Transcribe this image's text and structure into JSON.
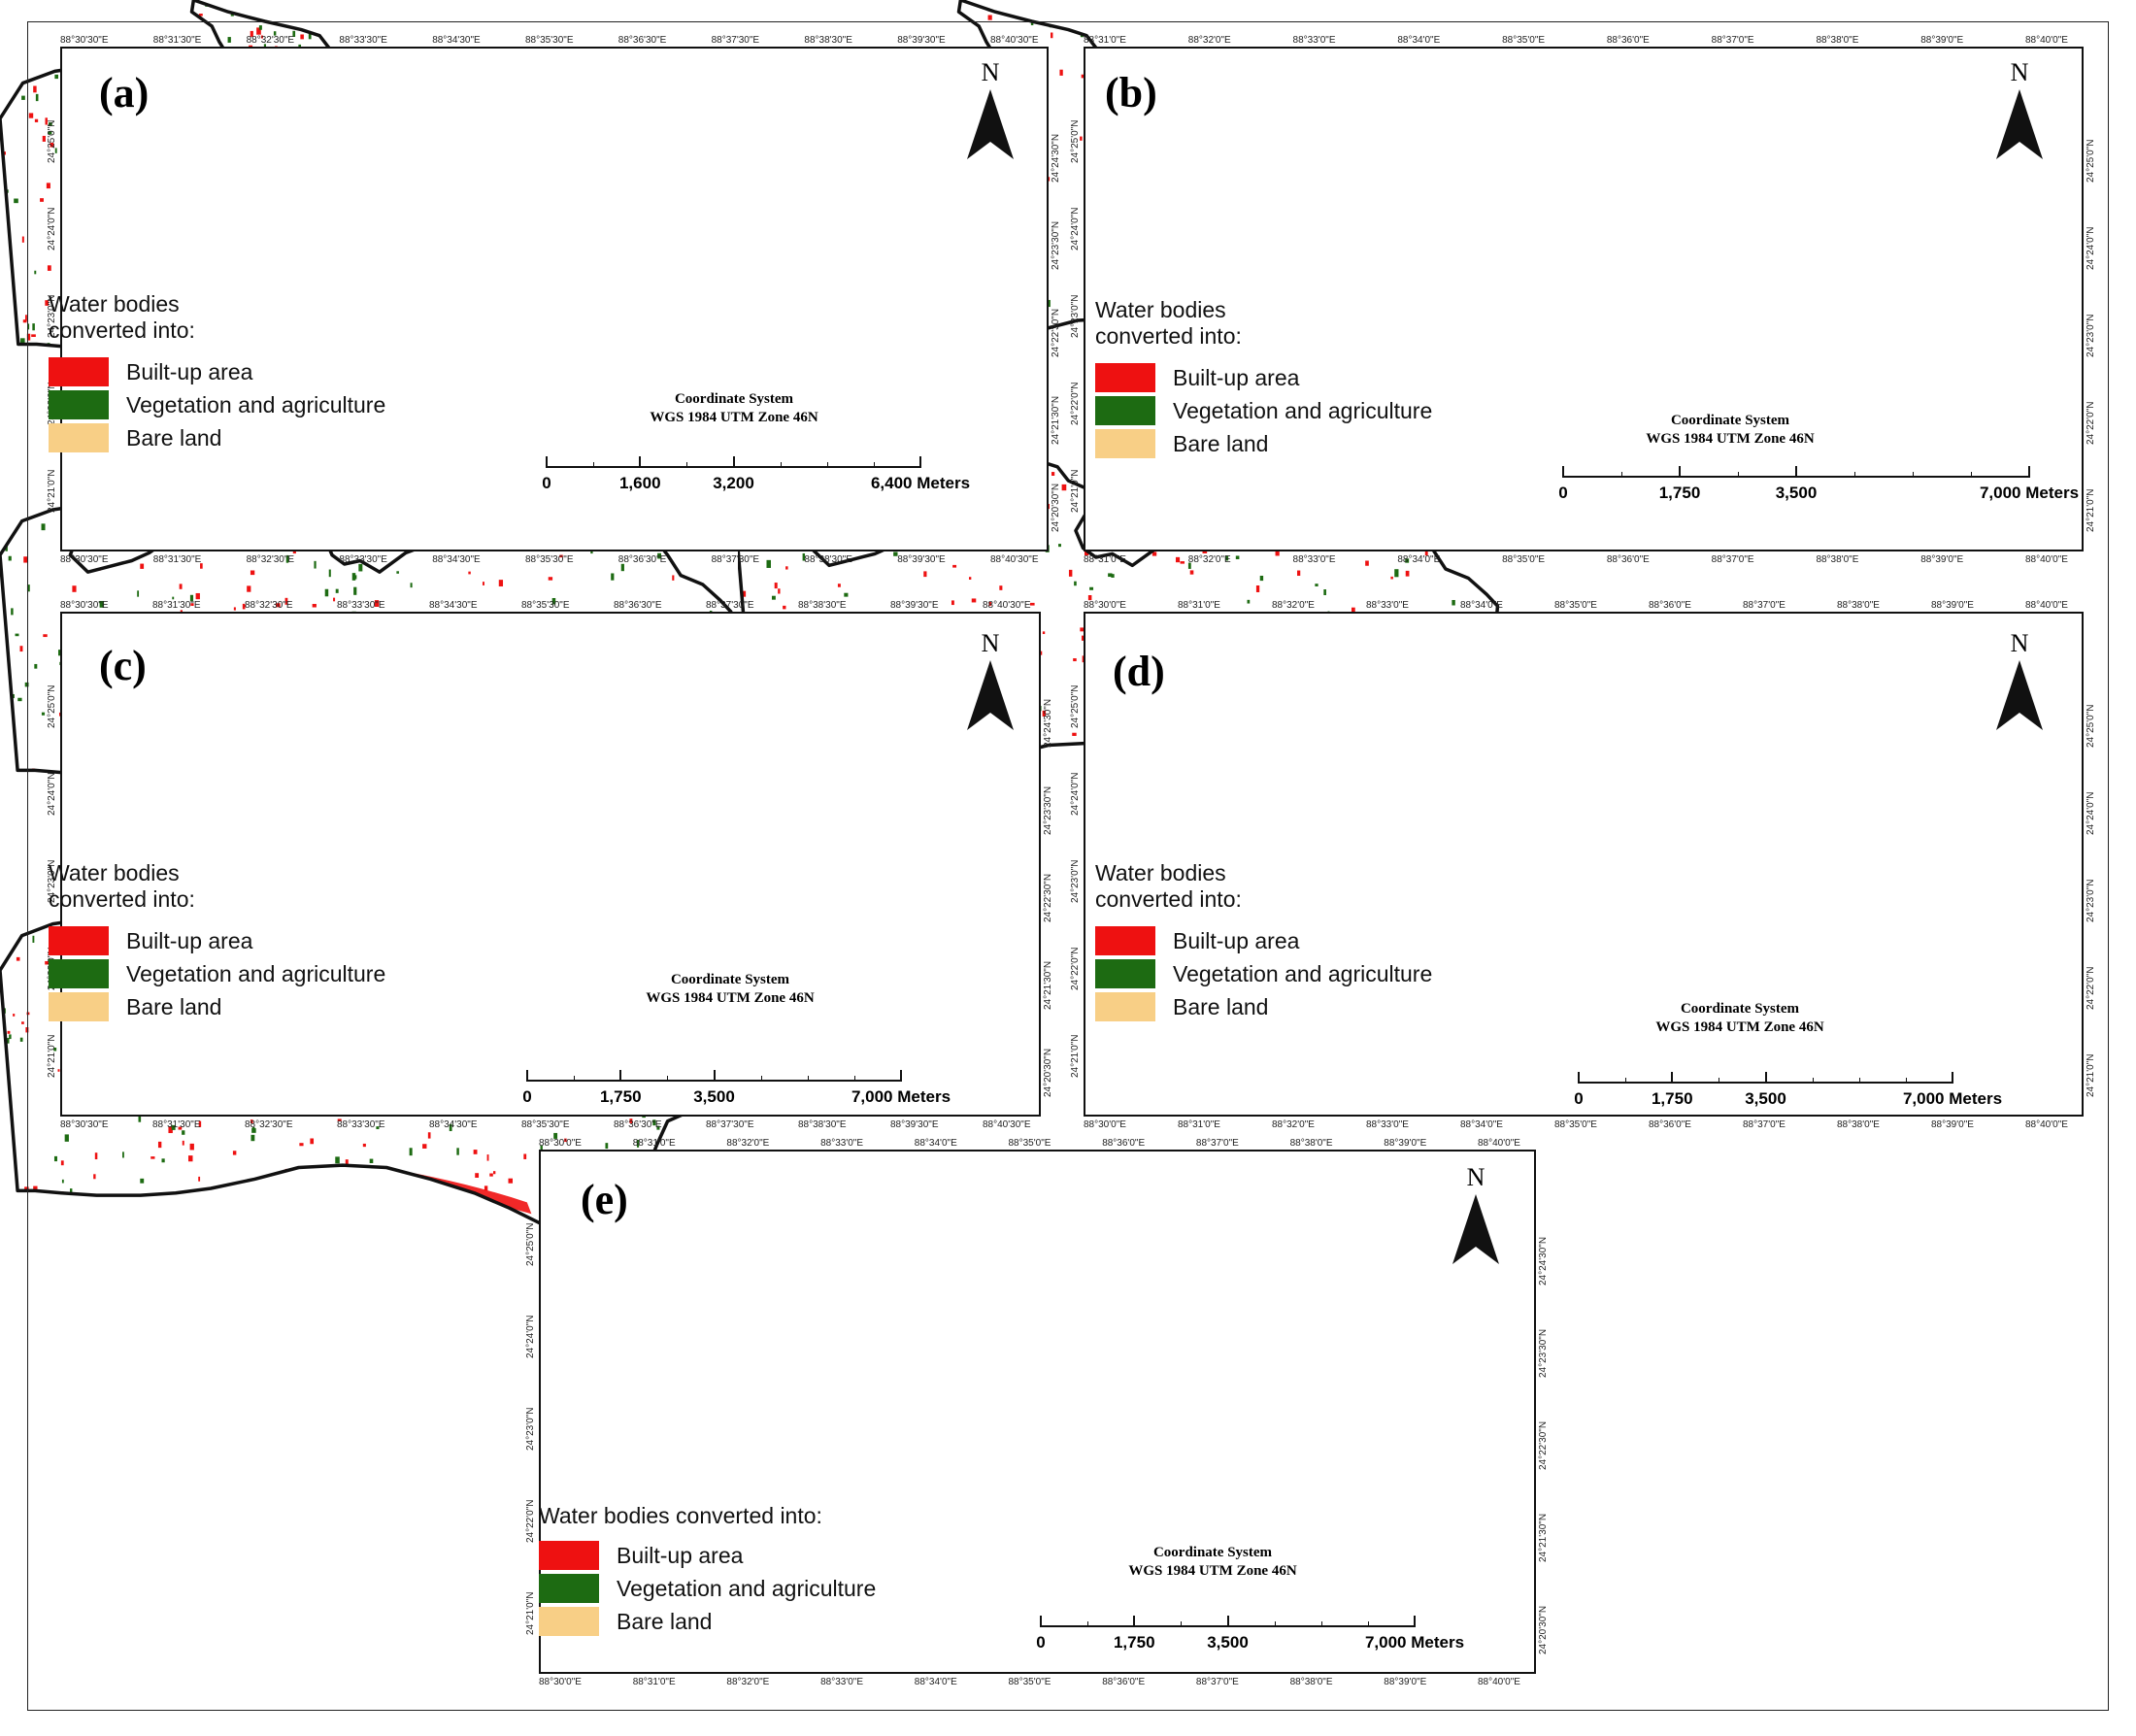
{
  "colors": {
    "builtup": "#ee1111",
    "vegetation": "#1d6b12",
    "bareland": "#f8cf86",
    "boundary": "#111111"
  },
  "north_symbol": "N",
  "legend_items": [
    "Built-up area",
    "Vegetation and agriculture",
    "Bare land"
  ],
  "coord_system": [
    "Coordinate System",
    "WGS 1984 UTM Zone 46N"
  ],
  "grid_labels": {
    "lon_a": [
      "88°30'30\"E",
      "88°31'30\"E",
      "88°32'30\"E",
      "88°33'30\"E",
      "88°34'30\"E",
      "88°35'30\"E",
      "88°36'30\"E",
      "88°37'30\"E",
      "88°38'30\"E",
      "88°39'30\"E",
      "88°40'30\"E"
    ],
    "lon_b": [
      "88°31'0\"E",
      "88°32'0\"E",
      "88°33'0\"E",
      "88°34'0\"E",
      "88°35'0\"E",
      "88°36'0\"E",
      "88°37'0\"E",
      "88°38'0\"E",
      "88°39'0\"E",
      "88°40'0\"E"
    ],
    "lon_d": [
      "88°30'0\"E",
      "88°31'0\"E",
      "88°32'0\"E",
      "88°33'0\"E",
      "88°34'0\"E",
      "88°35'0\"E",
      "88°36'0\"E",
      "88°37'0\"E",
      "88°38'0\"E",
      "88°39'0\"E",
      "88°40'0\"E"
    ],
    "lat_a_left": [
      "24°25'0\"N",
      "24°24'0\"N",
      "24°23'0\"N",
      "24°22'0\"N",
      "24°21'0\"N"
    ],
    "lat_a_right": [
      "24°24'30\"N",
      "24°23'30\"N",
      "24°22'30\"N",
      "24°21'30\"N",
      "24°20'30\"N"
    ],
    "lat_b": [
      "24°25'0\"N",
      "24°24'0\"N",
      "24°23'0\"N",
      "24°22'0\"N",
      "24°21'0\"N"
    ]
  },
  "panels": [
    {
      "id": "a",
      "label": "(a)",
      "legend_title": "Water bodies converted into:",
      "scale_labels": [
        "0",
        "1,600",
        "3,200",
        "6,400 Meters"
      ]
    },
    {
      "id": "b",
      "label": "(b)",
      "legend_title": "Water bodies converted into:",
      "scale_labels": [
        "0",
        "1,750",
        "3,500",
        "7,000 Meters"
      ]
    },
    {
      "id": "c",
      "label": "(c)",
      "legend_title": "Water bodies converted into:",
      "scale_labels": [
        "0",
        "1,750",
        "3,500",
        "7,000 Meters"
      ]
    },
    {
      "id": "d",
      "label": "(d)",
      "legend_title": "Water bodies converted into:",
      "scale_labels": [
        "0",
        "1,750",
        "3,500",
        "7,000 Meters"
      ]
    },
    {
      "id": "e",
      "label": "(e)",
      "legend_title": "Water bodies converted into:",
      "scale_labels": [
        "0",
        "1,750",
        "3,500",
        "7,000 Meters"
      ]
    }
  ]
}
